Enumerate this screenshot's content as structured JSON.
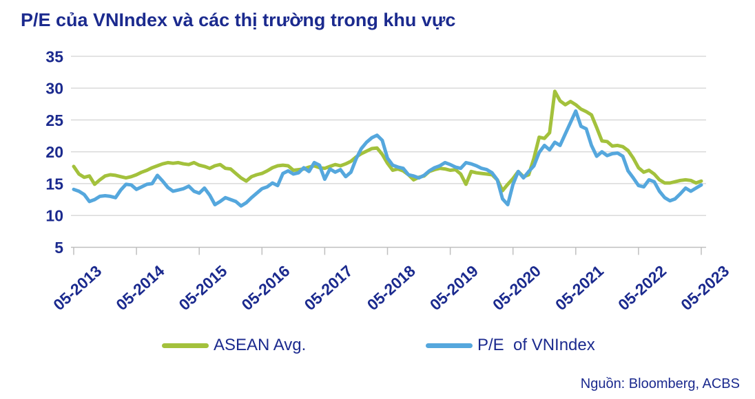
{
  "title": "P/E của VNIndex và các thị trường trong khu vực",
  "source_note": "Nguồn: Bloomberg, ACBS",
  "colors": {
    "navy_text": "#1b2a8e",
    "asean_line": "#a3c13c",
    "vnindex_line": "#55a7dd",
    "gridline": "#d9d9d9",
    "axis": "#bfbfbf"
  },
  "legend": {
    "items": [
      {
        "label": "ASEAN Avg.",
        "series_key": "asean"
      },
      {
        "label": "P/E  of VNIndex",
        "series_key": "vnindex"
      }
    ]
  },
  "chart_data": {
    "type": "line",
    "title": "P/E của VNIndex và các thị trường trong khu vực",
    "xlabel": "",
    "ylabel": "",
    "ylim": [
      5,
      35
    ],
    "y_ticks": [
      5,
      10,
      15,
      20,
      25,
      30,
      35
    ],
    "grid": true,
    "legend_position": "bottom",
    "x_start": "2013-05",
    "x_step_months": 1,
    "x_end": "2023-05",
    "x_tick_labels": [
      "05-2013",
      "05-2014",
      "05-2015",
      "05-2016",
      "05-2017",
      "05-2018",
      "05-2019",
      "05-2020",
      "05-2021",
      "05-2022",
      "05-2023"
    ],
    "series": [
      {
        "name": "ASEAN Avg.",
        "color": "#a3c13c",
        "values": [
          17.7,
          16.5,
          16.0,
          16.2,
          14.9,
          15.6,
          16.2,
          16.4,
          16.3,
          16.1,
          15.9,
          16.1,
          16.4,
          16.8,
          17.1,
          17.5,
          17.8,
          18.1,
          18.3,
          18.2,
          18.3,
          18.1,
          18.0,
          18.3,
          17.9,
          17.7,
          17.4,
          17.8,
          18.0,
          17.4,
          17.3,
          16.6,
          15.9,
          15.4,
          16.1,
          16.4,
          16.6,
          17.0,
          17.5,
          17.8,
          17.9,
          17.8,
          17.1,
          17.2,
          17.3,
          17.6,
          17.8,
          17.5,
          17.4,
          17.7,
          18.0,
          17.8,
          18.1,
          18.5,
          19.2,
          19.7,
          20.1,
          20.5,
          20.6,
          19.6,
          18.2,
          17.1,
          17.3,
          17.0,
          16.4,
          15.6,
          16.0,
          16.2,
          16.9,
          17.2,
          17.4,
          17.3,
          17.1,
          17.2,
          16.5,
          14.9,
          16.9,
          16.7,
          16.6,
          16.5,
          16.4,
          15.6,
          13.9,
          14.9,
          15.8,
          16.9,
          16.1,
          16.4,
          19.0,
          22.3,
          22.1,
          23.0,
          29.5,
          28.0,
          27.4,
          27.9,
          27.4,
          26.7,
          26.3,
          25.8,
          23.8,
          21.7,
          21.6,
          20.9,
          21.0,
          20.8,
          20.2,
          19.0,
          17.5,
          16.8,
          17.1,
          16.5,
          15.6,
          15.1,
          15.1,
          15.3,
          15.5,
          15.6,
          15.5,
          15.1,
          15.4
        ]
      },
      {
        "name": "P/E  of VNIndex",
        "color": "#55a7dd",
        "values": [
          14.1,
          13.8,
          13.3,
          12.2,
          12.5,
          13.0,
          13.1,
          13.0,
          12.8,
          14.0,
          14.9,
          14.8,
          14.1,
          14.5,
          14.9,
          15.0,
          16.3,
          15.4,
          14.4,
          13.8,
          14.0,
          14.2,
          14.6,
          13.8,
          13.5,
          14.3,
          13.2,
          11.7,
          12.2,
          12.8,
          12.5,
          12.2,
          11.5,
          12.0,
          12.8,
          13.5,
          14.2,
          14.5,
          15.1,
          14.7,
          16.6,
          17.0,
          16.5,
          16.7,
          17.5,
          16.9,
          18.3,
          17.9,
          15.7,
          17.3,
          16.8,
          17.2,
          16.1,
          16.8,
          18.9,
          20.5,
          21.5,
          22.2,
          22.6,
          21.8,
          19.0,
          17.9,
          17.6,
          17.4,
          16.4,
          16.2,
          15.9,
          16.3,
          17.0,
          17.5,
          17.8,
          18.3,
          18.0,
          17.6,
          17.4,
          18.3,
          18.1,
          17.8,
          17.4,
          17.2,
          16.7,
          15.6,
          12.6,
          11.7,
          14.9,
          16.9,
          15.9,
          16.9,
          17.8,
          19.9,
          21.0,
          20.3,
          21.5,
          21.0,
          22.8,
          24.6,
          26.4,
          24.0,
          23.6,
          21.0,
          19.3,
          20.0,
          19.4,
          19.7,
          19.8,
          19.3,
          17.0,
          15.9,
          14.7,
          14.5,
          15.6,
          15.3,
          13.8,
          12.8,
          12.3,
          12.6,
          13.4,
          14.3,
          13.8,
          14.3,
          14.8
        ]
      }
    ]
  }
}
